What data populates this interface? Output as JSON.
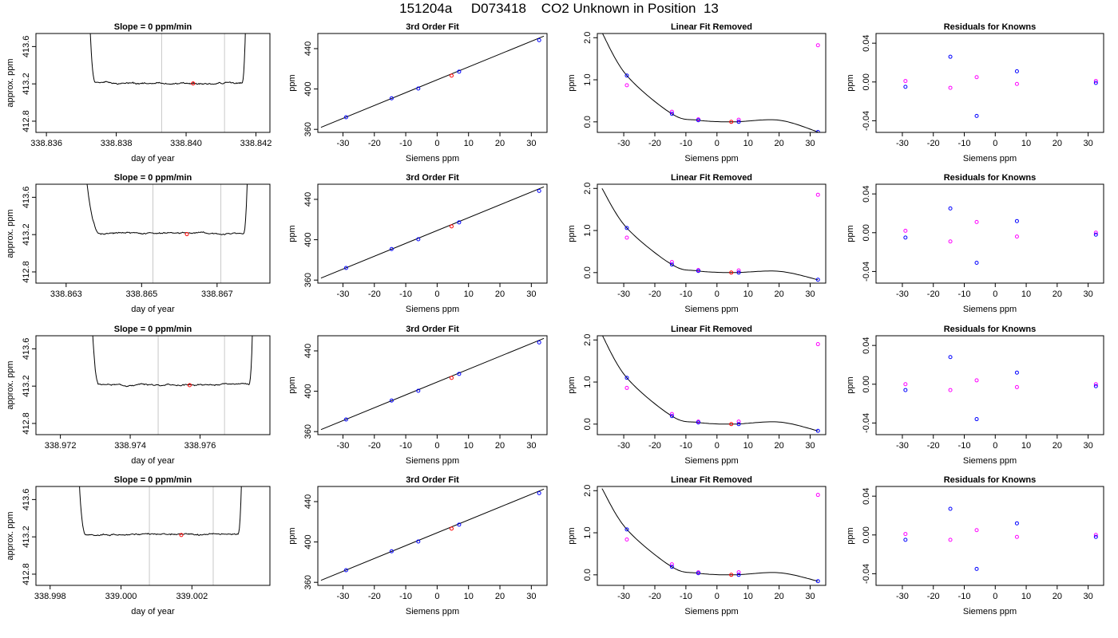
{
  "figure_title": "151204a     D073418    CO2 Unknown in Position  13",
  "chart_data": [
    {
      "type": "line",
      "title": "Slope =  0  ppm/min",
      "xlabel": "day of year",
      "ylabel": "approx. ppm",
      "xlim": [
        338.8357,
        338.8424
      ],
      "ylim": [
        412.68,
        413.74
      ],
      "xticks": [
        338.836,
        338.838,
        338.84,
        338.842
      ],
      "xtick_labels": [
        "338.836",
        "338.838",
        "338.840",
        "338.842"
      ],
      "yticks": [
        412.8,
        413.2,
        413.6
      ],
      "ytick_labels": [
        "412.8",
        "413.2",
        "413.6"
      ],
      "window": [
        338.8393,
        338.8411
      ],
      "marker": {
        "x": 338.8402,
        "y": 413.205
      },
      "curve": {
        "t_start": 338.8369,
        "t_end": 338.8419,
        "rise_end": 338.8374,
        "fall_start": 338.8416,
        "level": 413.205,
        "noise": 0.012,
        "seed": 1
      }
    },
    {
      "type": "scatter",
      "title": "3rd Order Fit",
      "xlabel": "Siemens ppm",
      "ylabel": "ppm",
      "xlim": [
        -38,
        35
      ],
      "ylim": [
        357,
        455
      ],
      "xticks": [
        -30,
        -20,
        -10,
        0,
        10,
        20,
        30
      ],
      "xtick_labels": [
        "-30",
        "-20",
        "-10",
        "0",
        "10",
        "20",
        "30"
      ],
      "yticks": [
        360,
        400,
        440
      ],
      "ytick_labels": [
        "360",
        "400",
        "440"
      ],
      "line": {
        "x": [
          -37,
          34
        ],
        "y": [
          362,
          452.4
        ]
      },
      "knowns": {
        "x": [
          -29,
          -14.5,
          -6,
          7,
          32.5
        ],
        "y": [
          372,
          390.8,
          400.5,
          417.2,
          448.4
        ]
      },
      "unknown": {
        "x": [
          4.6
        ],
        "y": [
          413.2
        ]
      }
    },
    {
      "type": "scatter",
      "title": "Linear Fit Removed",
      "xlabel": "Siemens ppm",
      "ylabel": "ppm",
      "xlim": [
        -38.5,
        35
      ],
      "ylim": [
        -0.25,
        2.1
      ],
      "xticks": [
        -30,
        -20,
        -10,
        0,
        10,
        20,
        30
      ],
      "xtick_labels": [
        "-30",
        "-20",
        "-10",
        "0",
        "10",
        "20",
        "30"
      ],
      "yticks": [
        0,
        1,
        2
      ],
      "ytick_labels": [
        "0.0",
        "1.0",
        "2.0"
      ],
      "curve": {
        "xs": [
          -37,
          -29,
          -14.5,
          -6,
          5,
          20,
          32.5
        ],
        "ys": [
          2.12,
          1.1,
          0.19,
          0.04,
          0,
          0.04,
          -0.24
        ]
      },
      "knowns_blue": {
        "x": [
          -29,
          -14.5,
          -6,
          7,
          32.5
        ],
        "y": [
          1.1,
          0.19,
          0.04,
          0.0,
          -0.24
        ]
      },
      "knowns_magenta": {
        "x": [
          -29,
          -14.5,
          -6,
          7,
          32.5
        ],
        "y": [
          0.87,
          0.24,
          0.06,
          0.05,
          1.82
        ]
      },
      "unknown": {
        "x": [
          4.6
        ],
        "y": [
          0.0
        ]
      }
    },
    {
      "type": "scatter",
      "title": "Residuals for Knowns",
      "xlabel": "Siemens ppm",
      "ylabel": "ppm",
      "xlim": [
        -38.5,
        35
      ],
      "ylim": [
        -0.052,
        0.05
      ],
      "xticks": [
        -30,
        -20,
        -10,
        0,
        10,
        20,
        30
      ],
      "xtick_labels": [
        "-30",
        "-20",
        "-10",
        "0",
        "10",
        "20",
        "30"
      ],
      "yticks": [
        -0.04,
        0,
        0.04
      ],
      "ytick_labels": [
        "-0.04",
        "0.00",
        "0.04"
      ],
      "blue": {
        "x": [
          -29,
          -14.5,
          -6,
          7,
          32.5
        ],
        "y": [
          -0.005,
          0.026,
          -0.035,
          0.011,
          -0.001
        ]
      },
      "magenta": {
        "x": [
          -29,
          -14.5,
          -6,
          7,
          32.5
        ],
        "y": [
          0.001,
          -0.006,
          0.005,
          -0.002,
          0.001
        ]
      }
    },
    {
      "type": "line",
      "title": "Slope =  0  ppm/min",
      "xlabel": "day of year",
      "ylabel": "approx. ppm",
      "xlim": [
        338.8622,
        338.8684
      ],
      "ylim": [
        412.68,
        413.74
      ],
      "xticks": [
        338.863,
        338.865,
        338.867
      ],
      "xtick_labels": [
        "338.863",
        "338.865",
        "338.867"
      ],
      "yticks": [
        412.8,
        413.2,
        413.6
      ],
      "ytick_labels": [
        "412.8",
        "413.2",
        "413.6"
      ],
      "window": [
        338.8653,
        338.8671
      ],
      "marker": {
        "x": 338.8662,
        "y": 413.205
      },
      "curve": {
        "t_start": 338.8627,
        "t_end": 338.868,
        "rise_end": 338.8639,
        "fall_start": 338.8677,
        "level": 413.215,
        "noise": 0.012,
        "seed": 2
      }
    },
    {
      "type": "scatter",
      "title": "3rd Order Fit",
      "xlabel": "Siemens ppm",
      "ylabel": "ppm",
      "xlim": [
        -38,
        35
      ],
      "ylim": [
        357,
        455
      ],
      "xticks": [
        -30,
        -20,
        -10,
        0,
        10,
        20,
        30
      ],
      "xtick_labels": [
        "-30",
        "-20",
        "-10",
        "0",
        "10",
        "20",
        "30"
      ],
      "yticks": [
        360,
        400,
        440
      ],
      "ytick_labels": [
        "360",
        "400",
        "440"
      ],
      "line": {
        "x": [
          -37,
          34
        ],
        "y": [
          362,
          452.4
        ]
      },
      "knowns": {
        "x": [
          -29,
          -14.5,
          -6,
          7,
          32.5
        ],
        "y": [
          372,
          390.8,
          400.5,
          417.2,
          448.4
        ]
      },
      "unknown": {
        "x": [
          4.6
        ],
        "y": [
          413.2
        ]
      }
    },
    {
      "type": "scatter",
      "title": "Linear Fit Removed",
      "xlabel": "Siemens ppm",
      "ylabel": "ppm",
      "xlim": [
        -38.5,
        35
      ],
      "ylim": [
        -0.25,
        2.1
      ],
      "xticks": [
        -30,
        -20,
        -10,
        0,
        10,
        20,
        30
      ],
      "xtick_labels": [
        "-30",
        "-20",
        "-10",
        "0",
        "10",
        "20",
        "30"
      ],
      "yticks": [
        0,
        1,
        2
      ],
      "ytick_labels": [
        "0.0",
        "1.0",
        "2.0"
      ],
      "curve": {
        "xs": [
          -37,
          -29,
          -14.5,
          -6,
          5,
          20,
          32.5
        ],
        "ys": [
          2.0,
          1.06,
          0.19,
          0.04,
          0,
          0.03,
          -0.17
        ]
      },
      "knowns_blue": {
        "x": [
          -29,
          -14.5,
          -6,
          7,
          32.5
        ],
        "y": [
          1.06,
          0.19,
          0.04,
          0.0,
          -0.17
        ]
      },
      "knowns_magenta": {
        "x": [
          -29,
          -14.5,
          -6,
          7,
          32.5
        ],
        "y": [
          0.83,
          0.25,
          0.06,
          0.05,
          1.85
        ]
      },
      "unknown": {
        "x": [
          4.6
        ],
        "y": [
          0.0
        ]
      }
    },
    {
      "type": "scatter",
      "title": "Residuals for Knowns",
      "xlabel": "Siemens ppm",
      "ylabel": "ppm",
      "xlim": [
        -38.5,
        35
      ],
      "ylim": [
        -0.052,
        0.05
      ],
      "xticks": [
        -30,
        -20,
        -10,
        0,
        10,
        20,
        30
      ],
      "xtick_labels": [
        "-30",
        "-20",
        "-10",
        "0",
        "10",
        "20",
        "30"
      ],
      "yticks": [
        -0.04,
        0,
        0.04
      ],
      "ytick_labels": [
        "-0.04",
        "0.00",
        "0.04"
      ],
      "blue": {
        "x": [
          -29,
          -14.5,
          -6,
          7,
          32.5
        ],
        "y": [
          -0.005,
          0.025,
          -0.031,
          0.012,
          -0.002
        ]
      },
      "magenta": {
        "x": [
          -29,
          -14.5,
          -6,
          7,
          32.5
        ],
        "y": [
          0.002,
          -0.009,
          0.011,
          -0.004,
          0.0
        ]
      }
    },
    {
      "type": "line",
      "title": "Slope =  0  ppm/min",
      "xlabel": "day of year",
      "ylabel": "approx. ppm",
      "xlim": [
        338.9713,
        338.978
      ],
      "ylim": [
        412.68,
        413.74
      ],
      "xticks": [
        338.972,
        338.974,
        338.976
      ],
      "xtick_labels": [
        "338.972",
        "338.974",
        "338.976"
      ],
      "yticks": [
        412.8,
        413.2,
        413.6
      ],
      "ytick_labels": [
        "412.8",
        "413.2",
        "413.6"
      ],
      "window": [
        338.9748,
        338.9767
      ],
      "marker": {
        "x": 338.9757,
        "y": 413.21
      },
      "curve": {
        "t_start": 338.9725,
        "t_end": 338.9777,
        "rise_end": 338.9731,
        "fall_start": 338.9774,
        "level": 413.215,
        "noise": 0.01,
        "seed": 3
      }
    },
    {
      "type": "scatter",
      "title": "3rd Order Fit",
      "xlabel": "Siemens ppm",
      "ylabel": "ppm",
      "xlim": [
        -38,
        35
      ],
      "ylim": [
        357,
        455
      ],
      "xticks": [
        -30,
        -20,
        -10,
        0,
        10,
        20,
        30
      ],
      "xtick_labels": [
        "-30",
        "-20",
        "-10",
        "0",
        "10",
        "20",
        "30"
      ],
      "yticks": [
        360,
        400,
        440
      ],
      "ytick_labels": [
        "360",
        "400",
        "440"
      ],
      "line": {
        "x": [
          -37,
          34
        ],
        "y": [
          362,
          452.4
        ]
      },
      "knowns": {
        "x": [
          -29,
          -14.5,
          -6,
          7,
          32.5
        ],
        "y": [
          372,
          390.8,
          400.5,
          417.2,
          448.4
        ]
      },
      "unknown": {
        "x": [
          4.6
        ],
        "y": [
          413.2
        ]
      }
    },
    {
      "type": "scatter",
      "title": "Linear Fit Removed",
      "xlabel": "Siemens ppm",
      "ylabel": "ppm",
      "xlim": [
        -38.5,
        35
      ],
      "ylim": [
        -0.25,
        2.1
      ],
      "xticks": [
        -30,
        -20,
        -10,
        0,
        10,
        20,
        30
      ],
      "xtick_labels": [
        "-30",
        "-20",
        "-10",
        "0",
        "10",
        "20",
        "30"
      ],
      "yticks": [
        0,
        1,
        2
      ],
      "ytick_labels": [
        "0.0",
        "1.0",
        "2.0"
      ],
      "curve": {
        "xs": [
          -37,
          -29,
          -14.5,
          -6,
          5,
          20,
          32.5
        ],
        "ys": [
          2.12,
          1.1,
          0.19,
          0.04,
          0,
          0.05,
          -0.16
        ]
      },
      "knowns_blue": {
        "x": [
          -29,
          -14.5,
          -6,
          7,
          32.5
        ],
        "y": [
          1.1,
          0.19,
          0.04,
          0.0,
          -0.16
        ]
      },
      "knowns_magenta": {
        "x": [
          -29,
          -14.5,
          -6,
          7,
          32.5
        ],
        "y": [
          0.86,
          0.24,
          0.06,
          0.06,
          1.9
        ]
      },
      "unknown": {
        "x": [
          4.6
        ],
        "y": [
          0.0
        ]
      }
    },
    {
      "type": "scatter",
      "title": "Residuals for Knowns",
      "xlabel": "Siemens ppm",
      "ylabel": "ppm",
      "xlim": [
        -38.5,
        35
      ],
      "ylim": [
        -0.052,
        0.05
      ],
      "xticks": [
        -30,
        -20,
        -10,
        0,
        10,
        20,
        30
      ],
      "xtick_labels": [
        "-30",
        "-20",
        "-10",
        "0",
        "10",
        "20",
        "30"
      ],
      "yticks": [
        -0.04,
        0,
        0.04
      ],
      "ytick_labels": [
        "-0.04",
        "0.00",
        "0.04"
      ],
      "blue": {
        "x": [
          -29,
          -14.5,
          -6,
          7,
          32.5
        ],
        "y": [
          -0.006,
          0.028,
          -0.036,
          0.012,
          -0.002
        ]
      },
      "magenta": {
        "x": [
          -29,
          -14.5,
          -6,
          7,
          32.5
        ],
        "y": [
          0.0,
          -0.006,
          0.004,
          -0.003,
          0.0
        ]
      }
    },
    {
      "type": "line",
      "title": "Slope =  0  ppm/min",
      "xlabel": "day of year",
      "ylabel": "approx. ppm",
      "xlim": [
        338.9976,
        339.0042
      ],
      "ylim": [
        412.68,
        413.74
      ],
      "xticks": [
        338.998,
        339,
        339.002
      ],
      "xtick_labels": [
        "338.998",
        "339.000",
        "339.002"
      ],
      "yticks": [
        412.8,
        413.2,
        413.6
      ],
      "ytick_labels": [
        "412.8",
        "413.2",
        "413.6"
      ],
      "window": [
        339.0008,
        339.0026
      ],
      "marker": {
        "x": 339.0017,
        "y": 413.22
      },
      "curve": {
        "t_start": 338.9984,
        "t_end": 339.0036,
        "rise_end": 338.999,
        "fall_start": 339.0033,
        "level": 413.225,
        "noise": 0.011,
        "seed": 4
      }
    },
    {
      "type": "scatter",
      "title": "3rd Order Fit",
      "xlabel": "Siemens ppm",
      "ylabel": "ppm",
      "xlim": [
        -38,
        35
      ],
      "ylim": [
        357,
        455
      ],
      "xticks": [
        -30,
        -20,
        -10,
        0,
        10,
        20,
        30
      ],
      "xtick_labels": [
        "-30",
        "-20",
        "-10",
        "0",
        "10",
        "20",
        "30"
      ],
      "yticks": [
        360,
        400,
        440
      ],
      "ytick_labels": [
        "360",
        "400",
        "440"
      ],
      "line": {
        "x": [
          -37,
          34
        ],
        "y": [
          362,
          452.4
        ]
      },
      "knowns": {
        "x": [
          -29,
          -14.5,
          -6,
          7,
          32.5
        ],
        "y": [
          372,
          390.8,
          400.5,
          417.2,
          448.4
        ]
      },
      "unknown": {
        "x": [
          4.6
        ],
        "y": [
          413.2
        ]
      }
    },
    {
      "type": "scatter",
      "title": "Linear Fit Removed",
      "xlabel": "Siemens ppm",
      "ylabel": "ppm",
      "xlim": [
        -38.5,
        35
      ],
      "ylim": [
        -0.25,
        2.1
      ],
      "xticks": [
        -30,
        -20,
        -10,
        0,
        10,
        20,
        30
      ],
      "xtick_labels": [
        "-30",
        "-20",
        "-10",
        "0",
        "10",
        "20",
        "30"
      ],
      "yticks": [
        0,
        1,
        2
      ],
      "ytick_labels": [
        "0.0",
        "1.0",
        "2.0"
      ],
      "curve": {
        "xs": [
          -37,
          -29,
          -14.5,
          -6,
          5,
          20,
          32.5
        ],
        "ys": [
          2.05,
          1.08,
          0.19,
          0.04,
          0,
          0.05,
          -0.15
        ]
      },
      "knowns_blue": {
        "x": [
          -29,
          -14.5,
          -6,
          7,
          32.5
        ],
        "y": [
          1.08,
          0.19,
          0.04,
          0.0,
          -0.15
        ]
      },
      "knowns_magenta": {
        "x": [
          -29,
          -14.5,
          -6,
          7,
          32.5
        ],
        "y": [
          0.84,
          0.25,
          0.06,
          0.06,
          1.9
        ]
      },
      "unknown": {
        "x": [
          4.6
        ],
        "y": [
          0.0
        ]
      }
    },
    {
      "type": "scatter",
      "title": "Residuals for Knowns",
      "xlabel": "Siemens ppm",
      "ylabel": "ppm",
      "xlim": [
        -38.5,
        35
      ],
      "ylim": [
        -0.052,
        0.05
      ],
      "xticks": [
        -30,
        -20,
        -10,
        0,
        10,
        20,
        30
      ],
      "xtick_labels": [
        "-30",
        "-20",
        "-10",
        "0",
        "10",
        "20",
        "30"
      ],
      "yticks": [
        -0.04,
        0,
        0.04
      ],
      "ytick_labels": [
        "-0.04",
        "0.00",
        "0.04"
      ],
      "blue": {
        "x": [
          -29,
          -14.5,
          -6,
          7,
          32.5
        ],
        "y": [
          -0.005,
          0.027,
          -0.035,
          0.012,
          -0.002
        ]
      },
      "magenta": {
        "x": [
          -29,
          -14.5,
          -6,
          7,
          32.5
        ],
        "y": [
          0.001,
          -0.005,
          0.005,
          -0.002,
          0.0
        ]
      }
    }
  ],
  "colors": {
    "curve": "#000000",
    "window": "#c8c8c8",
    "blue": "#0000ff",
    "magenta": "#ff00ff",
    "unknown": "#ff0000"
  }
}
